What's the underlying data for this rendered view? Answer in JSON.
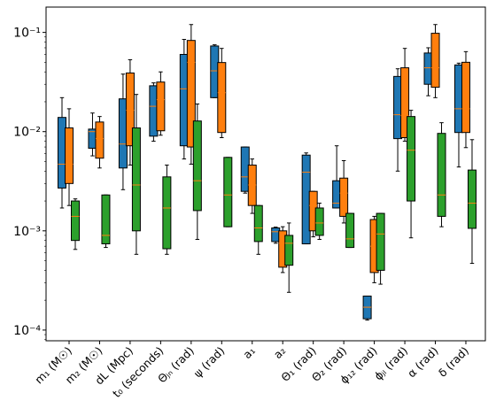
{
  "chart_data": {
    "type": "box",
    "log_y": true,
    "categories": [
      "m₁ (M☉)",
      "m₂ (M☉)",
      "dL (Mpc)",
      "t₀ (seconds)",
      "Θⱼₙ (rad)",
      "ψ (rad)",
      "a₁",
      "a₂",
      "Θ₁ (rad)",
      "Θ₂ (rad)",
      "ϕ₁₂ (rad)",
      "ϕⱼₗ (rad)",
      "α (rad)",
      "δ (rad)"
    ],
    "ylim": [
      7.8e-05,
      0.18
    ],
    "yticks": [
      {
        "value": 0.0001,
        "label": "10⁻⁴"
      },
      {
        "value": 0.001,
        "label": "10⁻³"
      },
      {
        "value": 0.01,
        "label": "10⁻²"
      },
      {
        "value": 0.1,
        "label": "10⁻¹"
      }
    ],
    "median_color": "#ff7f0e",
    "series": [
      {
        "color": "#1f77b4",
        "low": [
          0.0017,
          0.0057,
          0.0026,
          0.008,
          0.0053,
          0.022,
          0.0024,
          0.00075,
          0.00074,
          0.0017,
          0.000126,
          0.004,
          0.023,
          0.0044
        ],
        "q1": [
          0.0027,
          0.0068,
          0.0043,
          0.009,
          0.0072,
          0.022,
          0.0025,
          0.00078,
          0.00074,
          0.0017,
          0.00013,
          0.0085,
          0.03,
          0.0098
        ],
        "median": [
          0.0047,
          0.01,
          0.0075,
          0.018,
          0.027,
          0.041,
          0.0035,
          0.00098,
          0.0039,
          0.0019,
          0.00017,
          0.0148,
          0.044,
          0.017
        ],
        "q3": [
          0.0139,
          0.0106,
          0.0214,
          0.029,
          0.06,
          0.073,
          0.007,
          0.00107,
          0.0058,
          0.0032,
          0.00022,
          0.036,
          0.062,
          0.047
        ],
        "high": [
          0.022,
          0.0154,
          0.038,
          0.031,
          0.085,
          0.075,
          0.007,
          0.00109,
          0.0061,
          0.0072,
          0.00022,
          0.043,
          0.07,
          0.049
        ]
      },
      {
        "color": "#ff7f0e",
        "low": [
          0.0018,
          0.0043,
          0.0046,
          0.0092,
          0.0047,
          0.0087,
          0.0015,
          0.00038,
          0.00087,
          0.0012,
          0.0003,
          0.008,
          0.022,
          0.0069
        ],
        "q1": [
          0.003,
          0.0054,
          0.0072,
          0.0102,
          0.007,
          0.0098,
          0.0018,
          0.00043,
          0.001,
          0.0014,
          0.00038,
          0.0087,
          0.028,
          0.0098
        ],
        "median": [
          0.0047,
          0.0085,
          0.0164,
          0.021,
          0.05,
          0.0247,
          0.0029,
          0.00075,
          0.0018,
          0.0024,
          0.0007,
          0.0145,
          0.044,
          0.017
        ],
        "q3": [
          0.0109,
          0.0125,
          0.039,
          0.0316,
          0.083,
          0.0497,
          0.0046,
          0.001,
          0.0025,
          0.0034,
          0.0013,
          0.044,
          0.098,
          0.05
        ],
        "high": [
          0.017,
          0.0142,
          0.053,
          0.04,
          0.12,
          0.069,
          0.0053,
          0.0011,
          0.0025,
          0.0051,
          0.0014,
          0.069,
          0.12,
          0.064
        ]
      },
      {
        "color": "#2ca02c",
        "low": [
          0.00065,
          0.00068,
          0.00058,
          0.00058,
          0.00082,
          0.0011,
          0.00058,
          0.00024,
          0.00082,
          0.00068,
          0.00029,
          0.00085,
          0.0011,
          0.00047
        ],
        "q1": [
          0.0008,
          0.00074,
          0.001,
          0.00066,
          0.0016,
          0.0011,
          0.00078,
          0.00045,
          0.0009,
          0.00068,
          0.0004,
          0.002,
          0.0014,
          0.00106
        ],
        "median": [
          0.0014,
          0.0009,
          0.0029,
          0.0017,
          0.0032,
          0.0023,
          0.00107,
          0.00075,
          0.0012,
          0.00083,
          0.00093,
          0.0065,
          0.0023,
          0.0019
        ],
        "q3": [
          0.002,
          0.0023,
          0.0109,
          0.0035,
          0.0128,
          0.0055,
          0.0018,
          0.0009,
          0.0017,
          0.0015,
          0.0015,
          0.0142,
          0.0096,
          0.0041
        ],
        "high": [
          0.0021,
          0.0023,
          0.0237,
          0.0046,
          0.019,
          0.0055,
          0.0018,
          0.0012,
          0.0019,
          0.0015,
          0.0015,
          0.0164,
          0.0123,
          0.0083
        ]
      }
    ]
  }
}
